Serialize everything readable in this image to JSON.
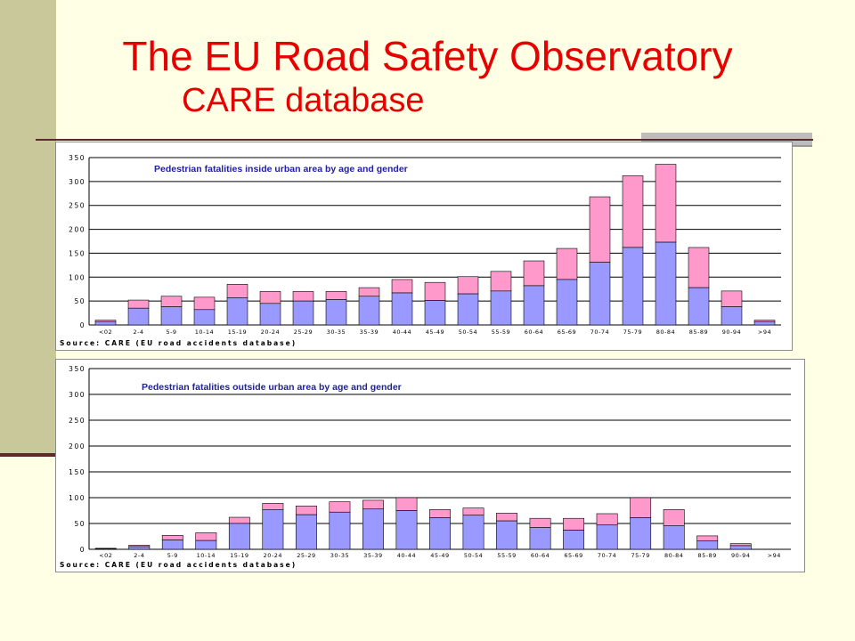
{
  "slide": {
    "title": "The EU Road Safety Observatory",
    "subtitle": "CARE database"
  },
  "colors": {
    "title": "#E60000",
    "background": "#FFFFE5",
    "sidebar": "#C8C89A",
    "bar_lower": "#9999FF",
    "bar_upper": "#FF99CC",
    "chart_title": "#2020A0"
  },
  "chart_data": [
    {
      "type": "bar",
      "stacked": true,
      "title": "Pedestrian fatalities inside urban area by age and gender",
      "source": "Source: CARE (EU road accidents database)",
      "categories": [
        "<02",
        "2-4",
        "5-9",
        "10-14",
        "15-19",
        "20-24",
        "25-29",
        "30-35",
        "35-39",
        "40-44",
        "45-49",
        "50-54",
        "55-59",
        "60-64",
        "65-69",
        "70-74",
        "75-79",
        "80-84",
        "85-89",
        "90-94",
        ">94"
      ],
      "series": [
        {
          "values": [
            7,
            35,
            38,
            32,
            57,
            45,
            50,
            53,
            60,
            67,
            51,
            65,
            71,
            82,
            95,
            131,
            162,
            173,
            78,
            38,
            7
          ]
        },
        {
          "values": [
            3,
            17,
            22,
            26,
            28,
            25,
            20,
            17,
            18,
            28,
            38,
            36,
            41,
            52,
            65,
            137,
            150,
            163,
            84,
            33,
            3
          ]
        }
      ],
      "ylim": [
        0,
        350
      ],
      "yticks": [
        0,
        50,
        100,
        150,
        200,
        250,
        300,
        350
      ],
      "grid": true
    },
    {
      "type": "bar",
      "stacked": true,
      "title": "Pedestrian fatalities outside urban area by age and gender",
      "source": "Source: CARE (EU road accidents database)",
      "categories": [
        "<02",
        "2-4",
        "5-9",
        "10-14",
        "15-19",
        "20-24",
        "25-29",
        "30-35",
        "35-39",
        "40-44",
        "45-49",
        "50-54",
        "55-59",
        "60-64",
        "65-69",
        "70-74",
        "75-79",
        "80-84",
        "85-89",
        "90-94",
        ">94"
      ],
      "series": [
        {
          "values": [
            1,
            5,
            18,
            17,
            50,
            77,
            67,
            72,
            78,
            75,
            61,
            66,
            55,
            42,
            37,
            47,
            61,
            46,
            16,
            7,
            0
          ]
        },
        {
          "values": [
            1,
            3,
            9,
            15,
            12,
            12,
            17,
            20,
            17,
            25,
            16,
            14,
            15,
            18,
            23,
            22,
            39,
            31,
            10,
            4,
            0
          ]
        }
      ],
      "ylim": [
        0,
        350
      ],
      "yticks": [
        0,
        50,
        100,
        150,
        200,
        250,
        300,
        350
      ],
      "grid": true
    }
  ]
}
